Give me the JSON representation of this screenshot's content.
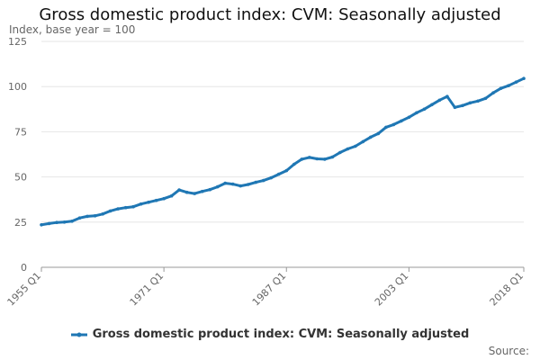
{
  "chart_data": {
    "type": "line",
    "title": "Gross domestic product index: CVM: Seasonally adjusted",
    "subtitle": "Index, base year = 100",
    "xlabel": "",
    "ylabel": "Index, base year = 100",
    "x_tick_labels": [
      "1955 Q1",
      "1971 Q1",
      "1987 Q1",
      "2003 Q1",
      "2018 Q1"
    ],
    "y_ticks": [
      0,
      25,
      50,
      75,
      100,
      125
    ],
    "ylim": [
      0,
      125
    ],
    "grid": true,
    "legend_position": "bottom",
    "series": [
      {
        "name": "Gross domestic product index: CVM: Seasonally adjusted",
        "color": "#1f77b4",
        "points": [
          [
            "1955 Q1",
            23.5
          ],
          [
            "1956 Q1",
            24.2
          ],
          [
            "1957 Q1",
            24.8
          ],
          [
            "1958 Q1",
            25.0
          ],
          [
            "1959 Q1",
            25.5
          ],
          [
            "1960 Q1",
            27.3
          ],
          [
            "1961 Q1",
            28.2
          ],
          [
            "1962 Q1",
            28.5
          ],
          [
            "1963 Q1",
            29.5
          ],
          [
            "1964 Q1",
            31.2
          ],
          [
            "1965 Q1",
            32.3
          ],
          [
            "1966 Q1",
            33.0
          ],
          [
            "1967 Q1",
            33.5
          ],
          [
            "1968 Q1",
            35.0
          ],
          [
            "1969 Q1",
            36.0
          ],
          [
            "1970 Q1",
            37.0
          ],
          [
            "1971 Q1",
            38.0
          ],
          [
            "1972 Q1",
            39.5
          ],
          [
            "1973 Q1",
            42.8
          ],
          [
            "1974 Q1",
            41.5
          ],
          [
            "1975 Q1",
            40.8
          ],
          [
            "1976 Q1",
            42.0
          ],
          [
            "1977 Q1",
            43.0
          ],
          [
            "1978 Q1",
            44.5
          ],
          [
            "1979 Q1",
            46.5
          ],
          [
            "1980 Q1",
            46.0
          ],
          [
            "1981 Q1",
            45.0
          ],
          [
            "1982 Q1",
            45.8
          ],
          [
            "1983 Q1",
            47.0
          ],
          [
            "1984 Q1",
            48.0
          ],
          [
            "1985 Q1",
            49.5
          ],
          [
            "1986 Q1",
            51.5
          ],
          [
            "1987 Q1",
            53.5
          ],
          [
            "1988 Q1",
            57.0
          ],
          [
            "1989 Q1",
            59.8
          ],
          [
            "1990 Q1",
            60.8
          ],
          [
            "1991 Q1",
            60.0
          ],
          [
            "1992 Q1",
            59.8
          ],
          [
            "1993 Q1",
            61.0
          ],
          [
            "1994 Q1",
            63.5
          ],
          [
            "1995 Q1",
            65.5
          ],
          [
            "1996 Q1",
            67.0
          ],
          [
            "1997 Q1",
            69.5
          ],
          [
            "1998 Q1",
            72.0
          ],
          [
            "1999 Q1",
            74.0
          ],
          [
            "2000 Q1",
            77.5
          ],
          [
            "2001 Q1",
            79.0
          ],
          [
            "2002 Q1",
            81.0
          ],
          [
            "2003 Q1",
            83.0
          ],
          [
            "2004 Q1",
            85.5
          ],
          [
            "2005 Q1",
            87.5
          ],
          [
            "2006 Q1",
            90.0
          ],
          [
            "2007 Q1",
            92.5
          ],
          [
            "2008 Q1",
            94.5
          ],
          [
            "2009 Q1",
            88.5
          ],
          [
            "2010 Q1",
            89.5
          ],
          [
            "2011 Q1",
            91.0
          ],
          [
            "2012 Q1",
            92.0
          ],
          [
            "2013 Q1",
            93.5
          ],
          [
            "2014 Q1",
            96.5
          ],
          [
            "2015 Q1",
            99.0
          ],
          [
            "2016 Q1",
            100.5
          ],
          [
            "2017 Q1",
            102.5
          ],
          [
            "2018 Q1",
            104.5
          ]
        ]
      }
    ]
  },
  "legend": {
    "label": "Gross domestic product index: CVM: Seasonally adjusted"
  },
  "footer": {
    "source": "Source:"
  }
}
